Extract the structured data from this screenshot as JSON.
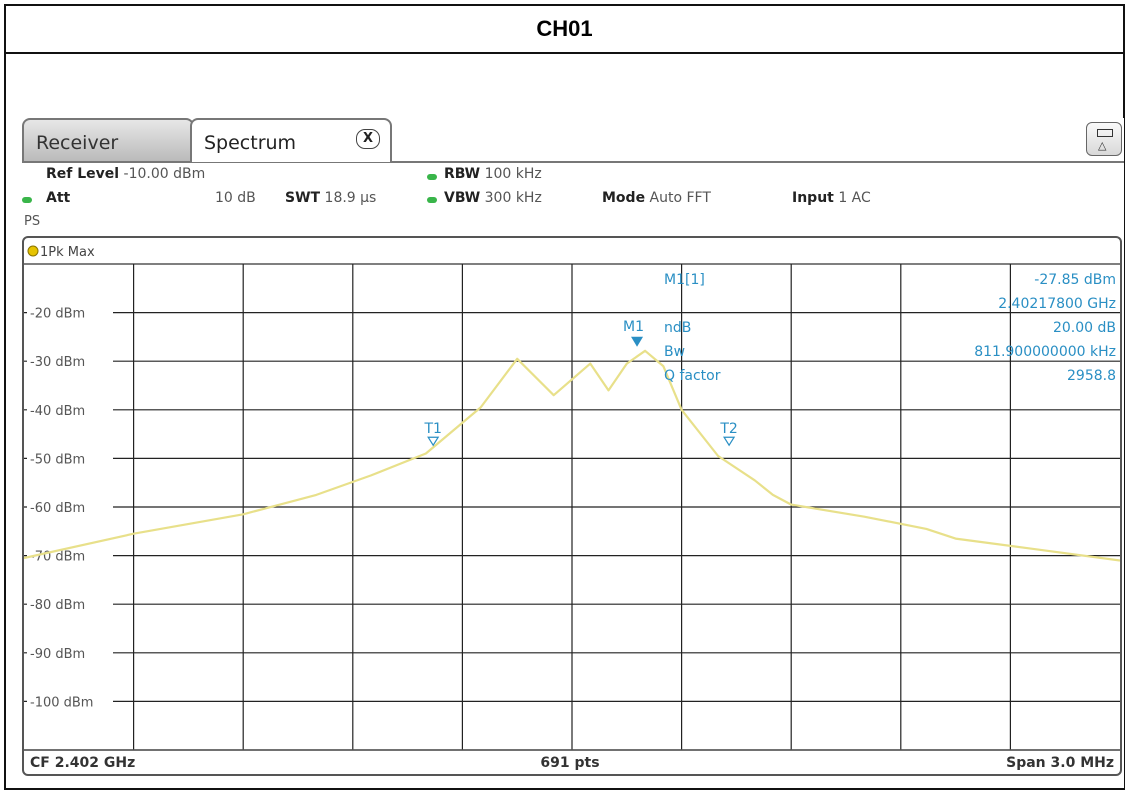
{
  "header": {
    "title": "CH01"
  },
  "tabs": {
    "receiver": "Receiver",
    "spectrum": "Spectrum",
    "close_glyph": "X"
  },
  "settings": {
    "ref_level_label": "Ref Level",
    "ref_level_value": "-10.00 dBm",
    "att_label": "Att",
    "att_value": "10 dB",
    "swt_label": "SWT",
    "swt_value": "18.9 µs",
    "rbw_label": "RBW",
    "rbw_value": "100 kHz",
    "vbw_label": "VBW",
    "vbw_value": "300 kHz",
    "mode_label": "Mode",
    "mode_value": "Auto FFT",
    "input_label": "Input",
    "input_value": "1 AC",
    "ps": "PS"
  },
  "trace_label": "1Pk Max",
  "y_ticks": [
    "-20 dBm",
    "-30 dBm",
    "-40 dBm",
    "-50 dBm",
    "-60 dBm",
    "-70 dBm",
    "-80 dBm",
    "-90 dBm",
    "-100 dBm"
  ],
  "marker_info": {
    "m1_label": "M1[1]",
    "m1_level": "-27.85 dBm",
    "m1_freq": "2.40217800 GHz",
    "ndb_label": "ndB",
    "ndb_value": "20.00 dB",
    "bw_label": "Bw",
    "bw_value": "811.900000000 kHz",
    "q_label": "Q factor",
    "q_value": "2958.8"
  },
  "markers": {
    "m1": "M1",
    "t1": "T1",
    "t2": "T2"
  },
  "footer": {
    "cf": "CF 2.402 GHz",
    "pts": "691 pts",
    "span": "Span 3.0 MHz"
  },
  "colors": {
    "trace": "#e8e08a",
    "marker": "#2a8fc4",
    "grid": "#222222",
    "green_led": "#39b54a",
    "trace_led": "#e6c300"
  },
  "chart_data": {
    "type": "line",
    "title": "",
    "xlabel": "",
    "ylabel": "",
    "xlim_mhz": [
      2400.5,
      2403.5
    ],
    "ylim": [
      -110,
      -10
    ],
    "grid": true,
    "series": [
      {
        "name": "1Pk Max",
        "x": [
          2400.5,
          2400.8,
          2401.1,
          2401.3,
          2401.45,
          2401.6,
          2401.75,
          2401.85,
          2401.95,
          2402.05,
          2402.1,
          2402.15,
          2402.2,
          2402.25,
          2402.3,
          2402.4,
          2402.5,
          2402.55,
          2402.6,
          2402.8,
          2402.97,
          2403.05,
          2403.25,
          2403.5
        ],
        "y": [
          -70.5,
          -65.5,
          -61.5,
          -57.5,
          -53.5,
          -49,
          -39.5,
          -29.5,
          -37,
          -30.5,
          -36,
          -30.5,
          -27.85,
          -31,
          -40,
          -49.5,
          -54.5,
          -57.5,
          -59.5,
          -62,
          -64.5,
          -66.5,
          -68.5,
          -71
        ]
      }
    ],
    "markers": [
      {
        "name": "M1",
        "x": 2402.178,
        "y": -27.85
      },
      {
        "name": "T1",
        "x": 2401.62,
        "y": -47.7
      },
      {
        "name": "T2",
        "x": 2402.43,
        "y": -47.7
      }
    ]
  }
}
